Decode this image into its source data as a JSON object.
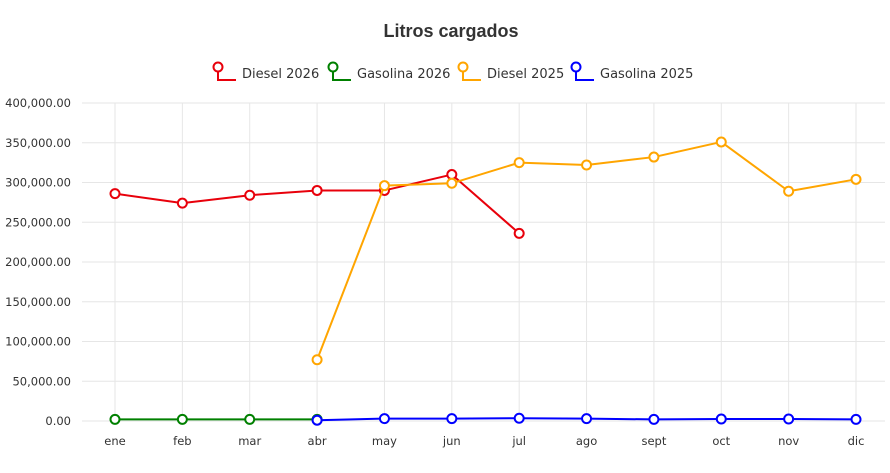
{
  "chart_data": {
    "type": "line",
    "title": "Litros cargados",
    "xlabel": "",
    "ylabel": "",
    "categories": [
      "ene",
      "feb",
      "mar",
      "abr",
      "may",
      "jun",
      "jul",
      "ago",
      "sept",
      "oct",
      "nov",
      "dic"
    ],
    "ylim": [
      0,
      400000
    ],
    "yticks": [
      0,
      50000,
      100000,
      150000,
      200000,
      250000,
      300000,
      350000,
      400000
    ],
    "ytick_labels": [
      "0.00",
      "50,000.00",
      "100,000.00",
      "150,000.00",
      "200,000.00",
      "250,000.00",
      "300,000.00",
      "350,000.00",
      "400,000.00"
    ],
    "grid": true,
    "legend_position": "top-center",
    "series": [
      {
        "name": "Diesel 2026",
        "color": "#e8000b",
        "values": [
          286000,
          274000,
          284000,
          290000,
          290000,
          310000,
          236000,
          null,
          null,
          null,
          null,
          null
        ]
      },
      {
        "name": "Gasolina 2026",
        "color": "#008000",
        "values": [
          2000,
          2000,
          2000,
          2000,
          null,
          null,
          null,
          null,
          null,
          null,
          null,
          null
        ]
      },
      {
        "name": "Diesel 2025",
        "color": "#ffa500",
        "values": [
          null,
          null,
          null,
          77000,
          296000,
          299000,
          325000,
          322000,
          332000,
          351000,
          289000,
          304000
        ]
      },
      {
        "name": "Gasolina 2025",
        "color": "#0000ff",
        "values": [
          null,
          null,
          null,
          1000,
          3000,
          3000,
          3500,
          3000,
          2000,
          2500,
          2500,
          2000
        ]
      }
    ]
  }
}
